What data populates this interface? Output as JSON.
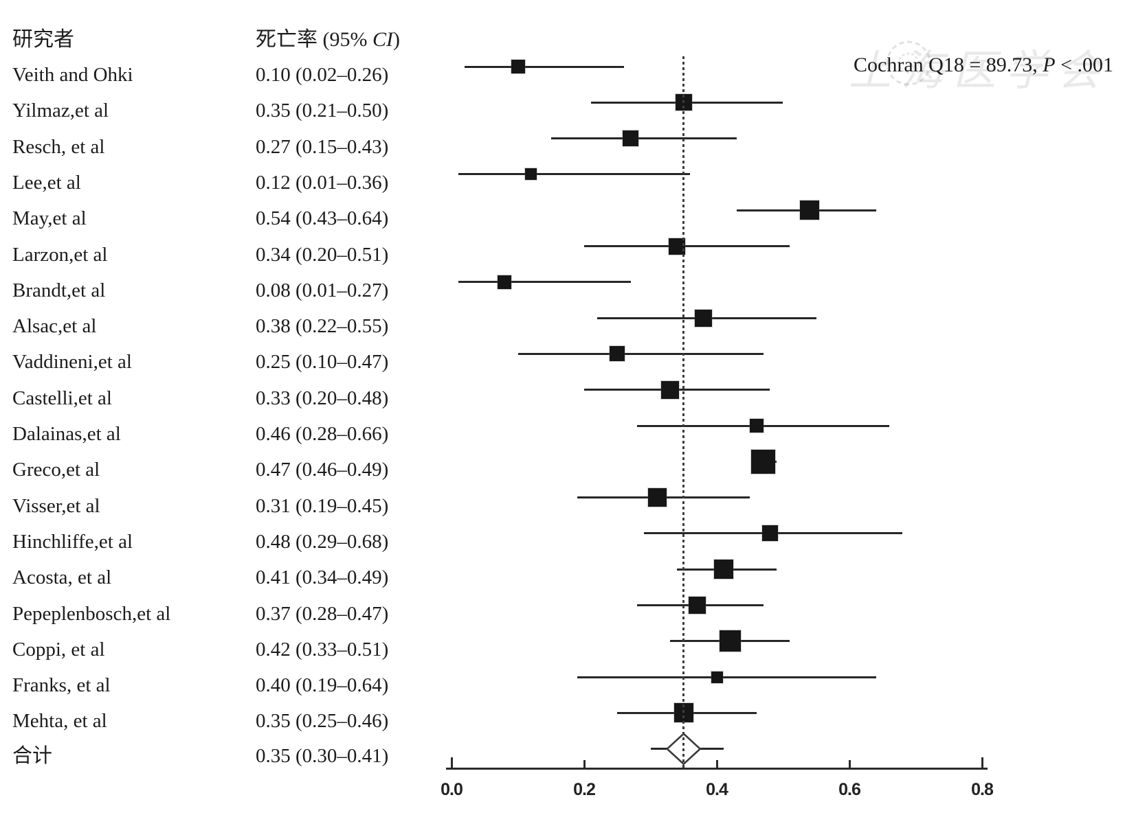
{
  "header": {
    "col_study": "研究者",
    "col_rate_prefix": "死亡率 (95% ",
    "col_rate_italic": "CI",
    "col_rate_suffix": ")"
  },
  "annotation": {
    "prefix": "Cochran Q18 = 89.73, ",
    "p_italic": "P",
    "suffix": " < .001"
  },
  "watermark": {
    "text": "上海医学会"
  },
  "chart_data": {
    "type": "forest",
    "title": "",
    "xlabel": "",
    "x_ticks": [
      "0.0",
      "0.2",
      "0.4",
      "0.6",
      "0.8"
    ],
    "x_tick_values": [
      0.0,
      0.2,
      0.4,
      0.6,
      0.8
    ],
    "xlim": [
      0.0,
      0.8
    ],
    "pooled_reference_line": 0.35,
    "heterogeneity": "Cochran Q18 = 89.73, P < .001",
    "studies": [
      {
        "name": "Veith and Ohki",
        "text": "0.10 (0.02–0.26)",
        "est": 0.1,
        "lo": 0.02,
        "hi": 0.26,
        "marker": 20
      },
      {
        "name": "Yilmaz,et al",
        "text": "0.35 (0.21–0.50)",
        "est": 0.35,
        "lo": 0.21,
        "hi": 0.5,
        "marker": 24
      },
      {
        "name": "Resch, et al",
        "text": "0.27 (0.15–0.43)",
        "est": 0.27,
        "lo": 0.15,
        "hi": 0.43,
        "marker": 23
      },
      {
        "name": "Lee,et al",
        "text": "0.12 (0.01–0.36)",
        "est": 0.12,
        "lo": 0.01,
        "hi": 0.36,
        "marker": 17
      },
      {
        "name": "May,et al",
        "text": "0.54 (0.43–0.64)",
        "est": 0.54,
        "lo": 0.43,
        "hi": 0.64,
        "marker": 28
      },
      {
        "name": "Larzon,et al",
        "text": "0.34 (0.20–0.51)",
        "est": 0.34,
        "lo": 0.2,
        "hi": 0.51,
        "marker": 24
      },
      {
        "name": "Brandt,et al",
        "text": "0.08 (0.01–0.27)",
        "est": 0.08,
        "lo": 0.01,
        "hi": 0.27,
        "marker": 20
      },
      {
        "name": "Alsac,et al",
        "text": "0.38 (0.22–0.55)",
        "est": 0.38,
        "lo": 0.22,
        "hi": 0.55,
        "marker": 25
      },
      {
        "name": "Vaddineni,et al",
        "text": "0.25 (0.10–0.47)",
        "est": 0.25,
        "lo": 0.1,
        "hi": 0.47,
        "marker": 22
      },
      {
        "name": "Castelli,et al",
        "text": "0.33 (0.20–0.48)",
        "est": 0.33,
        "lo": 0.2,
        "hi": 0.48,
        "marker": 26
      },
      {
        "name": "Dalainas,et al",
        "text": "0.46 (0.28–0.66)",
        "est": 0.46,
        "lo": 0.28,
        "hi": 0.66,
        "marker": 20
      },
      {
        "name": "Greco,et al",
        "text": "0.47 (0.46–0.49)",
        "est": 0.47,
        "lo": 0.46,
        "hi": 0.49,
        "marker": 35
      },
      {
        "name": "Visser,et al",
        "text": "0.31 (0.19–0.45)",
        "est": 0.31,
        "lo": 0.19,
        "hi": 0.45,
        "marker": 27
      },
      {
        "name": "Hinchliffe,et al",
        "text": "0.48 (0.29–0.68)",
        "est": 0.48,
        "lo": 0.29,
        "hi": 0.68,
        "marker": 23
      },
      {
        "name": "Acosta, et al",
        "text": "0.41 (0.34–0.49)",
        "est": 0.41,
        "lo": 0.34,
        "hi": 0.49,
        "marker": 28
      },
      {
        "name": "Pepeplenbosch,et al",
        "text": "0.37 (0.28–0.47)",
        "est": 0.37,
        "lo": 0.28,
        "hi": 0.47,
        "marker": 25
      },
      {
        "name": "Coppi, et al",
        "text": "0.42 (0.33–0.51)",
        "est": 0.42,
        "lo": 0.33,
        "hi": 0.51,
        "marker": 31
      },
      {
        "name": "Franks, et al",
        "text": "0.40 (0.19–0.64)",
        "est": 0.4,
        "lo": 0.19,
        "hi": 0.64,
        "marker": 17
      },
      {
        "name": "Mehta, et al",
        "text": "0.35 (0.25–0.46)",
        "est": 0.35,
        "lo": 0.25,
        "hi": 0.46,
        "marker": 28
      }
    ],
    "overall": {
      "name": "合计",
      "text": "0.35 (0.30–0.41)",
      "est": 0.35,
      "lo": 0.3,
      "hi": 0.41
    }
  }
}
